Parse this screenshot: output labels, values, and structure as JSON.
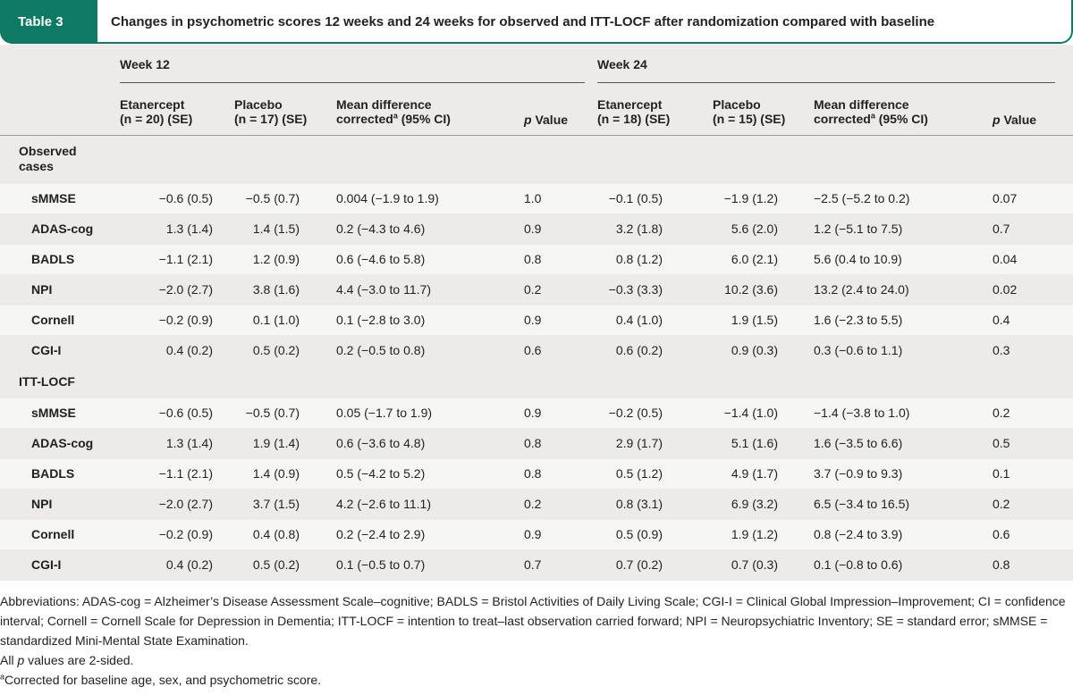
{
  "table": {
    "label": "Table 3",
    "title": "Changes in psychometric scores 12 weeks and 24 weeks for observed and ITT-LOCF after randomization compared with baseline"
  },
  "headers": {
    "week12": "Week 12",
    "week24": "Week 24",
    "etan12_l1": "Etanercept",
    "etan12_l2": "(n = 20) (SE)",
    "plac12_l1": "Placebo",
    "plac12_l2": "(n = 17) (SE)",
    "md_l1": "Mean difference",
    "md_l2a": "corrected",
    "md_sup": "a",
    "md_l2b": " (95% CI)",
    "p_italic": "p",
    "p_rest": " Value",
    "etan24_l1": "Etanercept",
    "etan24_l2": "(n = 18) (SE)",
    "plac24_l1": "Placebo",
    "plac24_l2": "(n = 15) (SE)"
  },
  "sections": [
    {
      "label_l1": "Observed",
      "label_l2": "cases",
      "rows": [
        {
          "measure": "sMMSE",
          "cells": [
            "−0.6 (0.5)",
            "−0.5 (0.7)",
            "0.004 (−1.9 to 1.9)",
            "1.0",
            "−0.1 (0.5)",
            "−1.9 (1.2)",
            "−2.5 (−5.2 to 0.2)",
            "0.07"
          ]
        },
        {
          "measure": "ADAS-cog",
          "cells": [
            "1.3 (1.4)",
            "1.4 (1.5)",
            "0.2 (−4.3 to 4.6)",
            "0.9",
            "3.2 (1.8)",
            "5.6 (2.0)",
            "1.2 (−5.1 to 7.5)",
            "0.7"
          ]
        },
        {
          "measure": "BADLS",
          "cells": [
            "−1.1 (2.1)",
            "1.2 (0.9)",
            "0.6 (−4.6 to 5.8)",
            "0.8",
            "0.8 (1.2)",
            "6.0 (2.1)",
            "5.6 (0.4 to 10.9)",
            "0.04"
          ]
        },
        {
          "measure": "NPI",
          "cells": [
            "−2.0 (2.7)",
            "3.8 (1.6)",
            "4.4 (−3.0 to 11.7)",
            "0.2",
            "−0.3 (3.3)",
            "10.2 (3.6)",
            "13.2 (2.4 to 24.0)",
            "0.02"
          ]
        },
        {
          "measure": "Cornell",
          "cells": [
            "−0.2 (0.9)",
            "0.1 (1.0)",
            "0.1 (−2.8 to 3.0)",
            "0.9",
            "0.4 (1.0)",
            "1.9 (1.5)",
            "1.6 (−2.3 to 5.5)",
            "0.4"
          ]
        },
        {
          "measure": "CGI-I",
          "cells": [
            "0.4 (0.2)",
            "0.5 (0.2)",
            "0.2 (−0.5 to 0.8)",
            "0.6",
            "0.6 (0.2)",
            "0.9 (0.3)",
            "0.3 (−0.6 to 1.1)",
            "0.3"
          ]
        }
      ]
    },
    {
      "label_l1": "ITT-LOCF",
      "label_l2": "",
      "rows": [
        {
          "measure": "sMMSE",
          "cells": [
            "−0.6 (0.5)",
            "−0.5 (0.7)",
            "0.05 (−1.7 to 1.9)",
            "0.9",
            "−0.2 (0.5)",
            "−1.4 (1.0)",
            "−1.4 (−3.8 to 1.0)",
            "0.2"
          ]
        },
        {
          "measure": "ADAS-cog",
          "cells": [
            "1.3 (1.4)",
            "1.9 (1.4)",
            "0.6 (−3.6 to 4.8)",
            "0.8",
            "2.9 (1.7)",
            "5.1 (1.6)",
            "1.6 (−3.5 to 6.6)",
            "0.5"
          ]
        },
        {
          "measure": "BADLS",
          "cells": [
            "−1.1 (2.1)",
            "1.4 (0.9)",
            "0.5 (−4.2 to 5.2)",
            "0.8",
            "0.5 (1.2)",
            "4.9 (1.7)",
            "3.7 (−0.9 to 9.3)",
            "0.1"
          ]
        },
        {
          "measure": "NPI",
          "cells": [
            "−2.0 (2.7)",
            "3.7 (1.5)",
            "4.2 (−2.6 to 11.1)",
            "0.2",
            "0.8 (3.1)",
            "6.9 (3.2)",
            "6.5 (−3.4 to 16.5)",
            "0.2"
          ]
        },
        {
          "measure": "Cornell",
          "cells": [
            "−0.2 (0.9)",
            "0.4 (0.8)",
            "0.2 (−2.4 to 2.9)",
            "0.9",
            "0.5 (0.9)",
            "1.9 (1.2)",
            "0.8 (−2.4 to 3.9)",
            "0.6"
          ]
        },
        {
          "measure": "CGI-I",
          "cells": [
            "0.4 (0.2)",
            "0.5 (0.2)",
            "0.1 (−0.5 to 0.7)",
            "0.7",
            "0.7 (0.2)",
            "0.7 (0.3)",
            "0.1 (−0.8 to 0.6)",
            "0.8"
          ]
        }
      ]
    }
  ],
  "footnotes": {
    "abbreviations": "Abbreviations: ADAS-cog = Alzheimer’s Disease Assessment Scale–cognitive; BADLS = Bristol Activities of Daily Living Scale; CGI-I = Clinical Global Impression–Improvement; CI = confidence interval; Cornell = Cornell Scale for Depression in Dementia; ITT-LOCF = intention to treat–last observation carried forward; NPI = Neuropsychiatric Inventory; SE = standard error; sMMSE = standardized Mini-Mental State Examination.",
    "pvalues_pre": "All ",
    "pvalues_italic": "p",
    "pvalues_post": " values are 2-sided.",
    "a_mark": "a",
    "a_text": "Corrected for baseline age, sex, and psychometric score."
  },
  "colors": {
    "accent": "#0e7a64",
    "table_bg": "#ecebea",
    "row_band": "#f6f6f5"
  }
}
